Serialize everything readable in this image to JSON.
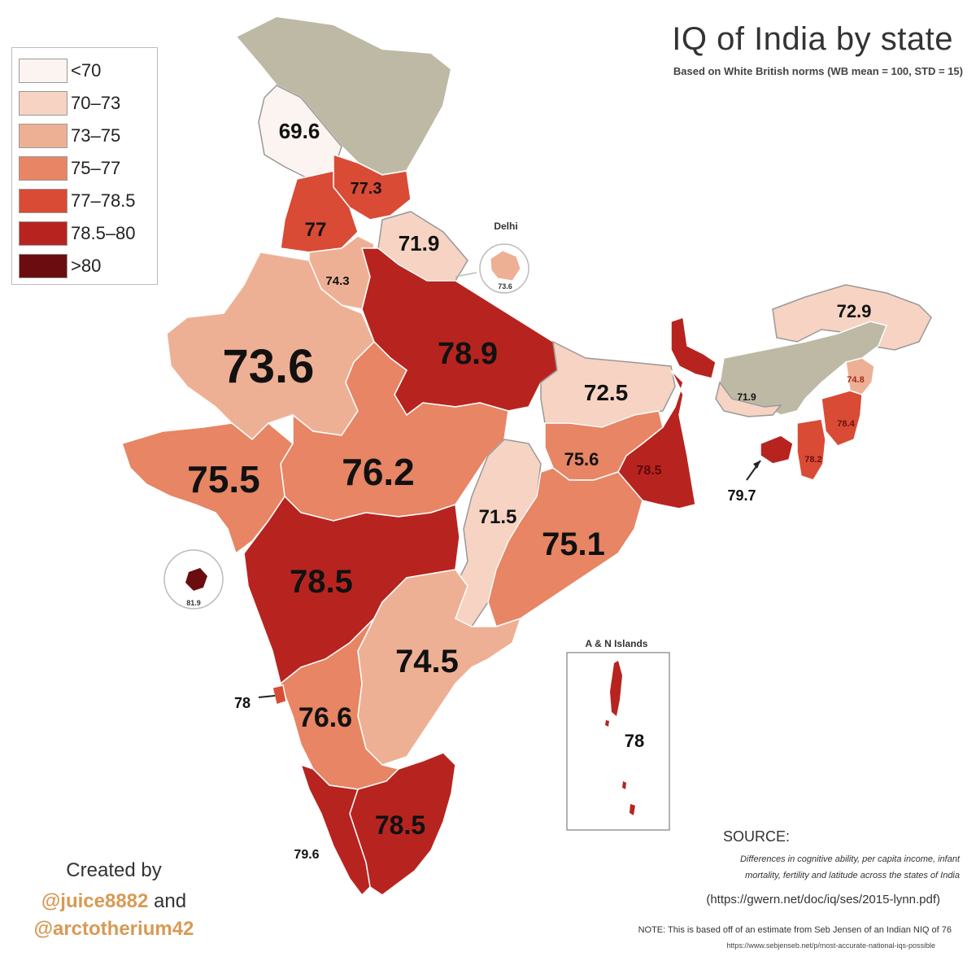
{
  "title": "IQ of India by state",
  "subtitle": "Based on White British norms (WB mean = 100, STD = 15)",
  "legend": [
    {
      "label": "<70",
      "color": "#fbf4f0"
    },
    {
      "label": "70–73",
      "color": "#f6d3c3"
    },
    {
      "label": "73–75",
      "color": "#eeb094"
    },
    {
      "label": "75–77",
      "color": "#e78564"
    },
    {
      "label": "77–78.5",
      "color": "#d94b35"
    },
    {
      "label": "78.5–80",
      "color": "#b7241f"
    },
    {
      "label": ">80",
      "color": "#6b0d10"
    }
  ],
  "no_data_color": "#bdb9a4",
  "regions": [
    {
      "label": "69.6",
      "value": 69.6,
      "color": "#fbf4f0"
    },
    {
      "label": "77.3",
      "value": 77.3,
      "color": "#d94b35"
    },
    {
      "label": "77",
      "value": 77,
      "color": "#d94b35"
    },
    {
      "label": "71.9",
      "value": 71.9,
      "color": "#f6d3c3"
    },
    {
      "label": "74.3",
      "value": 74.3,
      "color": "#eeb094"
    },
    {
      "label": "73.6",
      "value": 73.6,
      "color": "#eeb094"
    },
    {
      "label": "78.9",
      "value": 78.9,
      "color": "#b7241f"
    },
    {
      "label": "72.5",
      "value": 72.5,
      "color": "#f6d3c3"
    },
    {
      "label": "72.9",
      "value": 72.9,
      "color": "#f6d3c3"
    },
    {
      "label": "71.9",
      "value": 71.9,
      "color": "#f6d3c3"
    },
    {
      "label": "74.8",
      "value": 74.8,
      "color": "#eeb094"
    },
    {
      "label": "78.4",
      "value": 78.4,
      "color": "#d94b35"
    },
    {
      "label": "78.2",
      "value": 78.2,
      "color": "#d94b35"
    },
    {
      "label": "79.7",
      "value": 79.7,
      "color": "#b7241f"
    },
    {
      "label": "78.5",
      "value": 78.5,
      "color": "#b7241f"
    },
    {
      "label": "75.6",
      "value": 75.6,
      "color": "#e78564"
    },
    {
      "label": "75.5",
      "value": 75.5,
      "color": "#e78564"
    },
    {
      "label": "76.2",
      "value": 76.2,
      "color": "#e78564"
    },
    {
      "label": "71.5",
      "value": 71.5,
      "color": "#f6d3c3"
    },
    {
      "label": "75.1",
      "value": 75.1,
      "color": "#e78564"
    },
    {
      "label": "78.5",
      "value": 78.5,
      "color": "#b7241f"
    },
    {
      "label": "74.5",
      "value": 74.5,
      "color": "#eeb094"
    },
    {
      "label": "76.6",
      "value": 76.6,
      "color": "#e78564"
    },
    {
      "label": "78",
      "value": 78,
      "color": "#d94b35"
    },
    {
      "label": "78.5",
      "value": 78.5,
      "color": "#b7241f"
    },
    {
      "label": "79.6",
      "value": 79.6,
      "color": "#b7241f"
    }
  ],
  "insets": {
    "delhi": {
      "title": "Delhi",
      "value": "73.6"
    },
    "dadra": {
      "value": "81.9"
    },
    "andaman": {
      "title": "A & N Islands",
      "value": "78"
    }
  },
  "credit": {
    "prefix": "Created by",
    "handle1": "@juice8882",
    "and": "and",
    "handle2": "@arctotherium42"
  },
  "source": {
    "label": "SOURCE:",
    "desc_line1": "Differences in cognitive ability, per capita income, infant",
    "desc_line2": "mortality, fertility and latitude across the states of India",
    "url": "(https://gwern.net/doc/iq/ses/2015-lynn.pdf)"
  },
  "note": {
    "text": "NOTE: This is based off of an estimate from Seb Jensen of an Indian NIQ of 76",
    "url": "https://www.sebjenseb.net/p/most-accurate-national-iqs-possible"
  }
}
